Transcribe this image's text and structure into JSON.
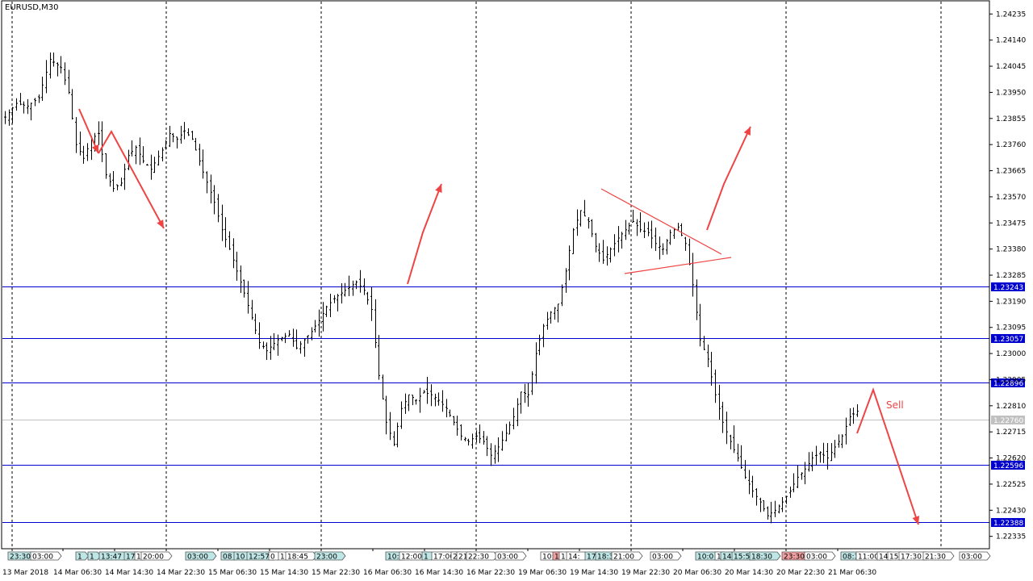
{
  "chart_data": {
    "type": "candlestick",
    "symbol": "EURUSD,M30",
    "ylim": [
      1.2229,
      1.2428
    ],
    "price_ticks": [
      "1.24235",
      "1.24140",
      "1.24045",
      "1.23950",
      "1.23855",
      "1.23760",
      "1.23665",
      "1.23570",
      "1.23475",
      "1.23380",
      "1.23285",
      "1.23190",
      "1.23095",
      "1.23000",
      "1.22905",
      "1.22810",
      "1.22715",
      "1.22620",
      "1.22525",
      "1.22430",
      "1.22335"
    ],
    "date_labels": [
      "13 Mar 2018",
      "14 Mar 06:30",
      "14 Mar 14:30",
      "14 Mar 22:30",
      "15 Mar 06:30",
      "15 Mar 14:30",
      "15 Mar 22:30",
      "16 Mar 06:30",
      "16 Mar 14:30",
      "16 Mar 22:30",
      "19 Mar 06:30",
      "19 Mar 14:30",
      "19 Mar 22:30",
      "20 Mar 06:30",
      "20 Mar 14:30",
      "20 Mar 22:30",
      "21 Mar 06:30"
    ],
    "levels": [
      {
        "price": 1.23243,
        "label": "1.23243",
        "color": "#0000cc"
      },
      {
        "price": 1.23057,
        "label": "1.23057",
        "color": "#0000cc"
      },
      {
        "price": 1.22896,
        "label": "1.22896",
        "color": "#0000cc"
      },
      {
        "price": 1.22596,
        "label": "1.22596",
        "color": "#0000cc"
      },
      {
        "price": 1.22388,
        "label": "1.22388",
        "color": "#0000cc"
      }
    ],
    "current_price": {
      "price": 1.2276,
      "label": "1.22760",
      "color": "#c0c0c0"
    },
    "arrow_color": "#ef4444",
    "sell_label": "Sell",
    "price_path": [
      [
        0,
        1.2386
      ],
      [
        3,
        1.2391
      ],
      [
        6,
        1.239
      ],
      [
        9,
        1.2393
      ],
      [
        12,
        1.2407
      ],
      [
        15,
        1.2404
      ],
      [
        17,
        1.2395
      ],
      [
        19,
        1.2376
      ],
      [
        21,
        1.2371
      ],
      [
        23,
        1.2378
      ],
      [
        25,
        1.238
      ],
      [
        27,
        1.2365
      ],
      [
        29,
        1.236
      ],
      [
        31,
        1.2362
      ],
      [
        33,
        1.2372
      ],
      [
        35,
        1.2375
      ],
      [
        37,
        1.237
      ],
      [
        39,
        1.2367
      ],
      [
        42,
        1.2374
      ],
      [
        44,
        1.238
      ],
      [
        46,
        1.2378
      ],
      [
        48,
        1.2381
      ],
      [
        50,
        1.2378
      ],
      [
        53,
        1.2366
      ],
      [
        56,
        1.2355
      ],
      [
        58,
        1.2345
      ],
      [
        60,
        1.2338
      ],
      [
        62,
        1.233
      ],
      [
        64,
        1.2322
      ],
      [
        66,
        1.2313
      ],
      [
        68,
        1.2304
      ],
      [
        70,
        1.2301
      ],
      [
        73,
        1.2305
      ],
      [
        76,
        1.2307
      ],
      [
        78,
        1.2302
      ],
      [
        80,
        1.2305
      ],
      [
        82,
        1.2308
      ],
      [
        84,
        1.2312
      ],
      [
        86,
        1.2317
      ],
      [
        88,
        1.232
      ],
      [
        90,
        1.2322
      ],
      [
        92,
        1.2324
      ],
      [
        94,
        1.2326
      ],
      [
        96,
        1.2323
      ],
      [
        98,
        1.2316
      ],
      [
        100,
        1.2292
      ],
      [
        102,
        1.2275
      ],
      [
        104,
        1.2267
      ],
      [
        106,
        1.228
      ],
      [
        108,
        1.2285
      ],
      [
        110,
        1.2283
      ],
      [
        112,
        1.2286
      ],
      [
        114,
        1.2285
      ],
      [
        116,
        1.2283
      ],
      [
        118,
        1.228
      ],
      [
        120,
        1.2275
      ],
      [
        122,
        1.227
      ],
      [
        124,
        1.2268
      ],
      [
        126,
        1.227
      ],
      [
        128,
        1.2268
      ],
      [
        130,
        1.2263
      ],
      [
        132,
        1.2266
      ],
      [
        134,
        1.2271
      ],
      [
        136,
        1.2277
      ],
      [
        138,
        1.2286
      ],
      [
        140,
        1.2285
      ],
      [
        142,
        1.23
      ],
      [
        144,
        1.231
      ],
      [
        146,
        1.2315
      ],
      [
        148,
        1.2318
      ],
      [
        150,
        1.233
      ],
      [
        152,
        1.2345
      ],
      [
        154,
        1.2352
      ],
      [
        156,
        1.2348
      ],
      [
        158,
        1.2339
      ],
      [
        160,
        1.2334
      ],
      [
        162,
        1.2338
      ],
      [
        164,
        1.2342
      ],
      [
        166,
        1.2345
      ],
      [
        168,
        1.2348
      ],
      [
        170,
        1.2345
      ],
      [
        172,
        1.2344
      ],
      [
        174,
        1.234
      ],
      [
        176,
        1.2338
      ],
      [
        178,
        1.2344
      ],
      [
        180,
        1.2346
      ],
      [
        182,
        1.234
      ],
      [
        184,
        1.2325
      ],
      [
        186,
        1.2305
      ],
      [
        188,
        1.2298
      ],
      [
        190,
        1.2285
      ],
      [
        192,
        1.2275
      ],
      [
        194,
        1.2268
      ],
      [
        196,
        1.2262
      ],
      [
        198,
        1.2255
      ],
      [
        200,
        1.225
      ],
      [
        202,
        1.2246
      ],
      [
        204,
        1.2241
      ],
      [
        206,
        1.2243
      ],
      [
        208,
        1.2246
      ],
      [
        210,
        1.225
      ],
      [
        212,
        1.2255
      ],
      [
        214,
        1.2258
      ],
      [
        216,
        1.2262
      ],
      [
        218,
        1.2264
      ],
      [
        220,
        1.2262
      ],
      [
        222,
        1.2266
      ],
      [
        224,
        1.227
      ],
      [
        226,
        1.2277
      ],
      [
        228,
        1.2279
      ]
    ],
    "time_badges": [
      {
        "text": "23:30",
        "style": "teal"
      },
      {
        "text": "03:00",
        "style": "plain"
      },
      {
        "text": "1",
        "style": "teal"
      },
      {
        "text": "1",
        "style": "teal"
      },
      {
        "text": "13:47",
        "style": "teal"
      },
      {
        "text": "17",
        "style": "teal"
      },
      {
        "text": "1",
        "style": "plain"
      },
      {
        "text": "20:00",
        "style": "plain"
      },
      {
        "text": "03:00",
        "style": "teal"
      },
      {
        "text": "08",
        "style": "teal"
      },
      {
        "text": "10",
        "style": "teal"
      },
      {
        "text": "12:57",
        "style": "teal"
      },
      {
        "text": "0",
        "style": "plain"
      },
      {
        "text": "1",
        "style": "plain"
      },
      {
        "text": "18:45",
        "style": "plain"
      },
      {
        "text": "23:00",
        "style": "teal"
      },
      {
        "text": "10:",
        "style": "teal"
      },
      {
        "text": "12:00",
        "style": "plain"
      },
      {
        "text": "1",
        "style": "teal"
      },
      {
        "text": "17:00",
        "style": "plain"
      },
      {
        "text": "2",
        "style": "plain"
      },
      {
        "text": "21",
        "style": "plain"
      },
      {
        "text": "22:30",
        "style": "plain"
      },
      {
        "text": "03:00",
        "style": "plain"
      },
      {
        "text": "10:",
        "style": "plain"
      },
      {
        "text": "1",
        "style": "red"
      },
      {
        "text": "1",
        "style": "plain"
      },
      {
        "text": "14:",
        "style": "plain"
      },
      {
        "text": "17",
        "style": "teal"
      },
      {
        "text": "18:3",
        "style": "teal"
      },
      {
        "text": "21:00",
        "style": "plain"
      },
      {
        "text": "03:00",
        "style": "plain"
      },
      {
        "text": "10:0",
        "style": "teal"
      },
      {
        "text": "1",
        "style": "plain"
      },
      {
        "text": "14",
        "style": "teal"
      },
      {
        "text": "15:5",
        "style": "teal"
      },
      {
        "text": "18:30",
        "style": "teal"
      },
      {
        "text": "23:30",
        "style": "red"
      },
      {
        "text": "03:00",
        "style": "plain"
      },
      {
        "text": "08:3",
        "style": "teal"
      },
      {
        "text": "11:00",
        "style": "plain"
      },
      {
        "text": "14",
        "style": "plain"
      },
      {
        "text": "15",
        "style": "plain"
      },
      {
        "text": "17:30",
        "style": "plain"
      },
      {
        "text": "21:30",
        "style": "plain"
      },
      {
        "text": "03:00",
        "style": "plain"
      }
    ]
  }
}
